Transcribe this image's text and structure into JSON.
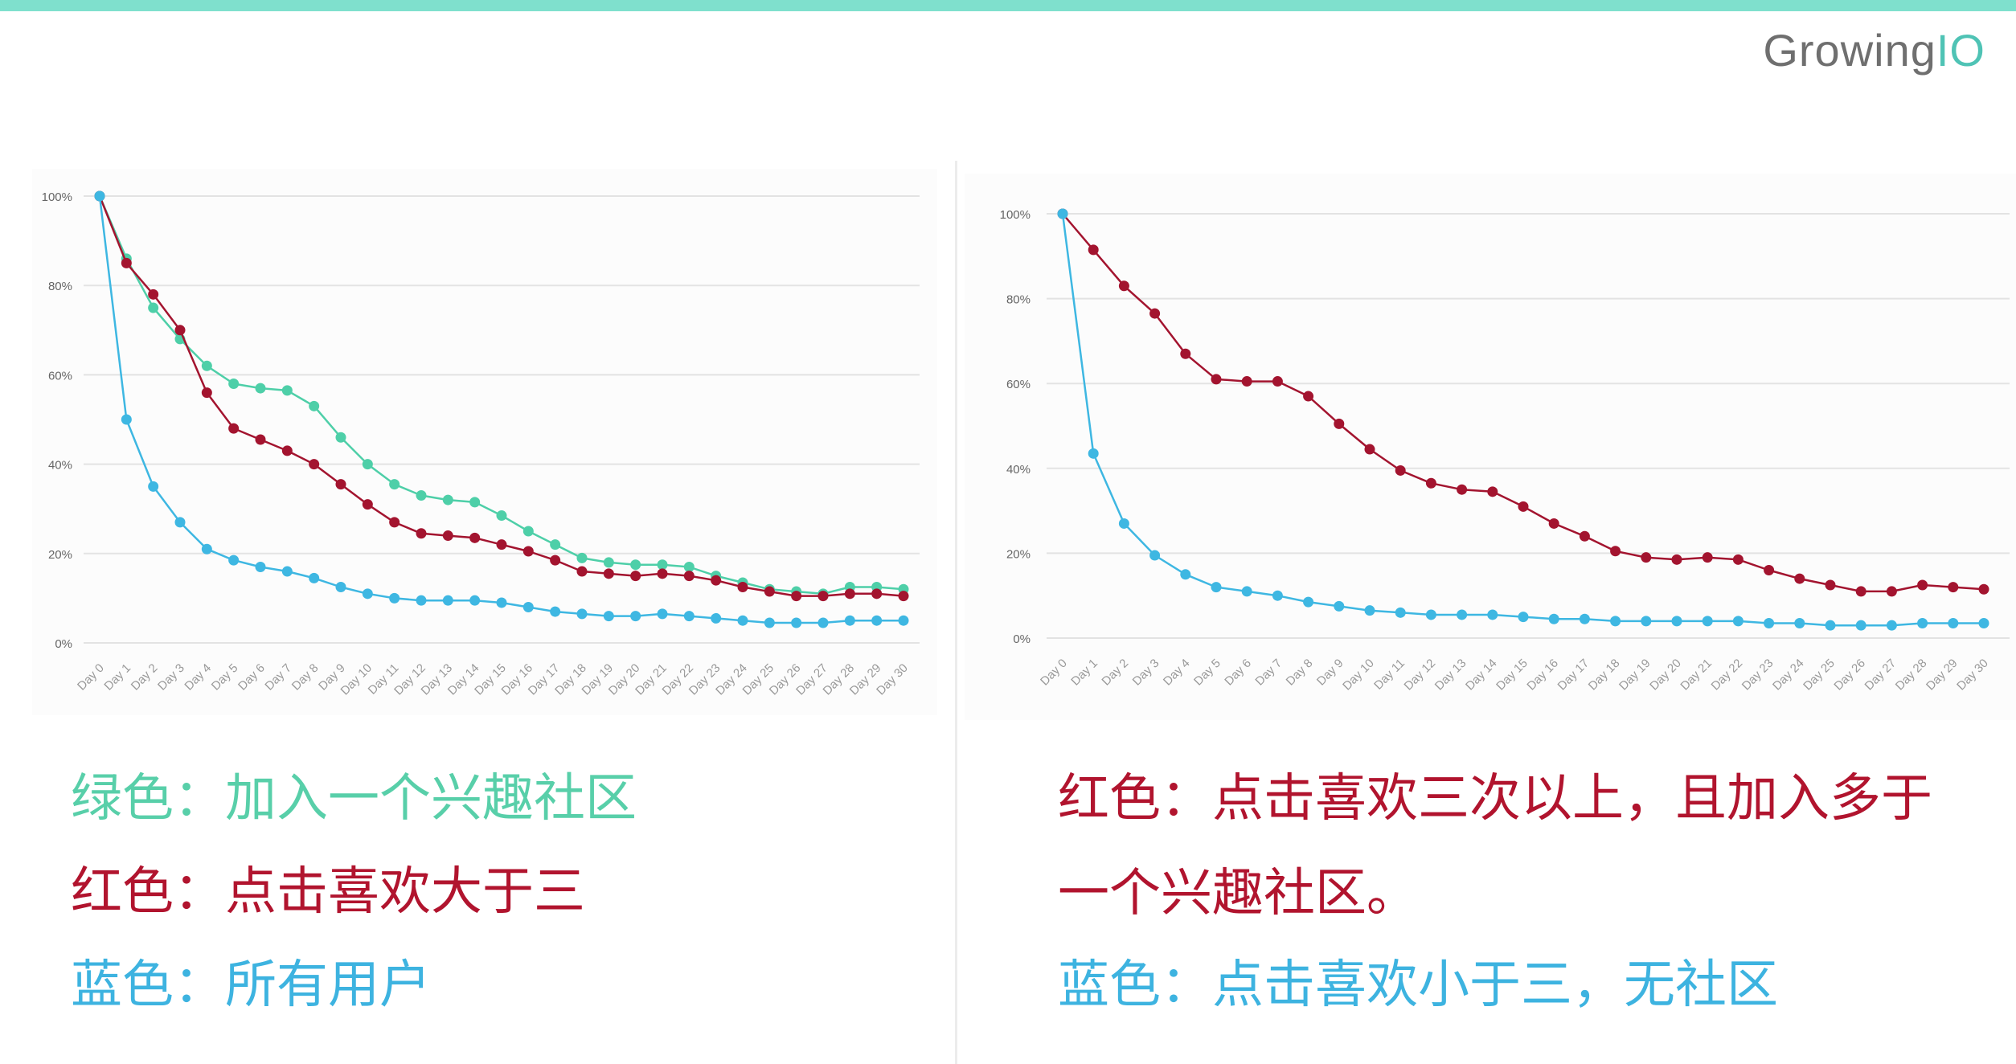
{
  "brand": {
    "name_main": "Growing",
    "name_accent": "IO"
  },
  "colors": {
    "top_bar": "#7fe0cd",
    "green": "#4ecfa8",
    "red": "#a3142f",
    "blue": "#3eb7e2",
    "legend_green": "#58cfa9",
    "legend_red": "#b1142e",
    "legend_blue": "#3db3e0"
  },
  "captions": {
    "left": [
      {
        "text": "绿色：加入一个兴趣社区",
        "color_key": "legend_green"
      },
      {
        "text": "红色：点击喜欢大于三",
        "color_key": "legend_red"
      },
      {
        "text": "蓝色：所有用户",
        "color_key": "legend_blue"
      }
    ],
    "right": [
      {
        "text": "红色：点击喜欢三次以上，且加入多于",
        "color_key": "legend_red"
      },
      {
        "text": "一个兴趣社区。",
        "color_key": "legend_red"
      },
      {
        "text": "蓝色：点击喜欢小于三，无社区",
        "color_key": "legend_blue"
      }
    ]
  },
  "chart_data": [
    {
      "type": "line",
      "title": "",
      "xlabel": "",
      "ylabel": "",
      "ylim": [
        0,
        100
      ],
      "y_ticks": [
        "0%",
        "20%",
        "40%",
        "60%",
        "80%",
        "100%"
      ],
      "grid": true,
      "categories": [
        "Day 0",
        "Day 1",
        "Day 2",
        "Day 3",
        "Day 4",
        "Day 5",
        "Day 6",
        "Day 7",
        "Day 8",
        "Day 9",
        "Day 10",
        "Day 11",
        "Day 12",
        "Day 13",
        "Day 14",
        "Day 15",
        "Day 16",
        "Day 17",
        "Day 18",
        "Day 19",
        "Day 20",
        "Day 21",
        "Day 22",
        "Day 23",
        "Day 24",
        "Day 25",
        "Day 26",
        "Day 27",
        "Day 28",
        "Day 29",
        "Day 30"
      ],
      "series": [
        {
          "color_key": "green",
          "values": [
            100,
            86,
            75,
            68,
            62,
            58,
            57,
            56.5,
            53,
            46,
            40,
            35.5,
            33,
            32,
            31.5,
            28.5,
            25,
            22,
            19,
            18,
            17.5,
            17.5,
            17,
            15,
            13.5,
            12,
            11.5,
            11,
            12.5,
            12.5,
            12
          ]
        },
        {
          "color_key": "red",
          "values": [
            100,
            85,
            78,
            70,
            56,
            48,
            45.5,
            43,
            40,
            35.5,
            31,
            27,
            24.5,
            24,
            23.5,
            22,
            20.5,
            18.5,
            16,
            15.5,
            15,
            15.5,
            15,
            14,
            12.5,
            11.5,
            10.5,
            10.5,
            11,
            11,
            10.5
          ]
        },
        {
          "color_key": "blue",
          "values": [
            100,
            50,
            35,
            27,
            21,
            18.5,
            17,
            16,
            14.5,
            12.5,
            11,
            10,
            9.5,
            9.5,
            9.5,
            9,
            8,
            7,
            6.5,
            6,
            6,
            6.5,
            6,
            5.5,
            5,
            4.5,
            4.5,
            4.5,
            5,
            5,
            5
          ]
        }
      ]
    },
    {
      "type": "line",
      "title": "",
      "xlabel": "",
      "ylabel": "",
      "ylim": [
        0,
        100
      ],
      "y_ticks": [
        "0%",
        "20%",
        "40%",
        "60%",
        "80%",
        "100%"
      ],
      "grid": true,
      "categories": [
        "Day 0",
        "Day 1",
        "Day 2",
        "Day 3",
        "Day 4",
        "Day 5",
        "Day 6",
        "Day 7",
        "Day 8",
        "Day 9",
        "Day 10",
        "Day 11",
        "Day 12",
        "Day 13",
        "Day 14",
        "Day 15",
        "Day 16",
        "Day 17",
        "Day 18",
        "Day 19",
        "Day 20",
        "Day 21",
        "Day 22",
        "Day 23",
        "Day 24",
        "Day 25",
        "Day 26",
        "Day 27",
        "Day 28",
        "Day 29",
        "Day 30"
      ],
      "series": [
        {
          "color_key": "red",
          "values": [
            100,
            91.5,
            83,
            76.5,
            67,
            61,
            60.5,
            60.5,
            57,
            50.5,
            44.5,
            39.5,
            36.5,
            35,
            34.5,
            31,
            27,
            24,
            20.5,
            19,
            18.5,
            19,
            18.5,
            16,
            14,
            12.5,
            11,
            11,
            12.5,
            12,
            11.5
          ]
        },
        {
          "color_key": "blue",
          "values": [
            100,
            43.5,
            27,
            19.5,
            15,
            12,
            11,
            10,
            8.5,
            7.5,
            6.5,
            6,
            5.5,
            5.5,
            5.5,
            5,
            4.5,
            4.5,
            4,
            4,
            4,
            4,
            4,
            3.5,
            3.5,
            3,
            3,
            3,
            3.5,
            3.5,
            3.5
          ]
        }
      ]
    }
  ]
}
